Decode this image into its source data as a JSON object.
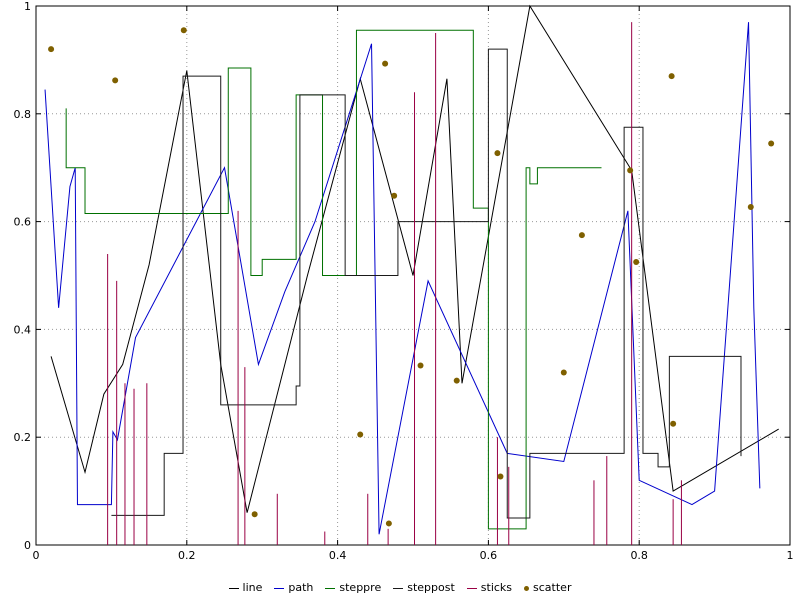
{
  "colors": {
    "background": "#ffffff",
    "axis": "#000000",
    "grid": "#999999",
    "text": "#000000"
  },
  "chart_data": {
    "type": "mixed",
    "title": "",
    "xlabel": "",
    "ylabel": "",
    "xlim": [
      0,
      1
    ],
    "ylim": [
      0,
      1
    ],
    "grid": true,
    "legend_position": "bottom-center",
    "xticks": {
      "values": [
        0,
        0.2,
        0.4,
        0.6,
        0.8,
        1
      ],
      "labels": [
        "0",
        "0.2",
        "0.4",
        "0.6",
        "0.8",
        "1"
      ]
    },
    "yticks": {
      "values": [
        0,
        0.2,
        0.4,
        0.6,
        0.8,
        1
      ],
      "labels": [
        "0",
        "0.2",
        "0.4",
        "0.6",
        "0.8",
        "1"
      ]
    },
    "series": [
      {
        "name": "line",
        "type": "line",
        "color": "#000000",
        "points": [
          [
            0.02,
            0.35
          ],
          [
            0.065,
            0.135
          ],
          [
            0.09,
            0.28
          ],
          [
            0.115,
            0.335
          ],
          [
            0.15,
            0.52
          ],
          [
            0.2,
            0.88
          ],
          [
            0.245,
            0.335
          ],
          [
            0.28,
            0.06
          ],
          [
            0.36,
            0.5
          ],
          [
            0.43,
            0.865
          ],
          [
            0.5,
            0.5
          ],
          [
            0.545,
            0.865
          ],
          [
            0.565,
            0.3
          ],
          [
            0.655,
            1.0
          ],
          [
            0.79,
            0.695
          ],
          [
            0.845,
            0.1
          ],
          [
            0.985,
            0.215
          ]
        ]
      },
      {
        "name": "path",
        "type": "path",
        "color": "#0000cc",
        "points": [
          [
            0.012,
            0.845
          ],
          [
            0.03,
            0.44
          ],
          [
            0.045,
            0.665
          ],
          [
            0.052,
            0.7
          ],
          [
            0.055,
            0.075
          ],
          [
            0.1,
            0.075
          ],
          [
            0.102,
            0.21
          ],
          [
            0.108,
            0.195
          ],
          [
            0.132,
            0.385
          ],
          [
            0.25,
            0.7
          ],
          [
            0.295,
            0.335
          ],
          [
            0.33,
            0.47
          ],
          [
            0.37,
            0.6
          ],
          [
            0.445,
            0.93
          ],
          [
            0.455,
            0.02
          ],
          [
            0.52,
            0.49
          ],
          [
            0.625,
            0.17
          ],
          [
            0.7,
            0.155
          ],
          [
            0.785,
            0.62
          ],
          [
            0.8,
            0.12
          ],
          [
            0.87,
            0.075
          ],
          [
            0.9,
            0.1
          ],
          [
            0.945,
            0.97
          ],
          [
            0.952,
            0.44
          ],
          [
            0.96,
            0.105
          ]
        ]
      },
      {
        "name": "steppre",
        "type": "steppre",
        "color": "#007000",
        "points": [
          [
            0.04,
            0.81
          ],
          [
            0.065,
            0.7
          ],
          [
            0.14,
            0.615
          ],
          [
            0.255,
            0.615
          ],
          [
            0.285,
            0.885
          ],
          [
            0.3,
            0.5
          ],
          [
            0.345,
            0.53
          ],
          [
            0.38,
            0.835
          ],
          [
            0.425,
            0.5
          ],
          [
            0.47,
            0.955
          ],
          [
            0.58,
            0.955
          ],
          [
            0.6,
            0.625
          ],
          [
            0.605,
            0.03
          ],
          [
            0.65,
            0.03
          ],
          [
            0.655,
            0.7
          ],
          [
            0.665,
            0.67
          ],
          [
            0.75,
            0.7
          ]
        ]
      },
      {
        "name": "steppost",
        "type": "steppost",
        "color": "#1a1a1a",
        "points": [
          [
            0.1,
            0.055
          ],
          [
            0.17,
            0.17
          ],
          [
            0.195,
            0.87
          ],
          [
            0.245,
            0.26
          ],
          [
            0.345,
            0.295
          ],
          [
            0.35,
            0.835
          ],
          [
            0.405,
            0.835
          ],
          [
            0.41,
            0.5
          ],
          [
            0.48,
            0.6
          ],
          [
            0.6,
            0.92
          ],
          [
            0.625,
            0.05
          ],
          [
            0.655,
            0.17
          ],
          [
            0.78,
            0.775
          ],
          [
            0.805,
            0.17
          ],
          [
            0.825,
            0.145
          ],
          [
            0.84,
            0.35
          ],
          [
            0.935,
            0.165
          ]
        ]
      },
      {
        "name": "sticks",
        "type": "sticks",
        "color": "#990044",
        "points": [
          [
            0.095,
            0.54
          ],
          [
            0.107,
            0.49
          ],
          [
            0.118,
            0.3
          ],
          [
            0.13,
            0.29
          ],
          [
            0.147,
            0.3
          ],
          [
            0.268,
            0.62
          ],
          [
            0.277,
            0.33
          ],
          [
            0.32,
            0.095
          ],
          [
            0.383,
            0.025
          ],
          [
            0.44,
            0.095
          ],
          [
            0.467,
            0.03
          ],
          [
            0.502,
            0.84
          ],
          [
            0.53,
            0.95
          ],
          [
            0.612,
            0.2
          ],
          [
            0.627,
            0.145
          ],
          [
            0.74,
            0.12
          ],
          [
            0.757,
            0.165
          ],
          [
            0.79,
            0.97
          ],
          [
            0.845,
            0.085
          ],
          [
            0.856,
            0.12
          ]
        ]
      },
      {
        "name": "scatter",
        "type": "scatter",
        "color": "#7f6000",
        "points": [
          [
            0.02,
            0.92
          ],
          [
            0.105,
            0.862
          ],
          [
            0.196,
            0.955
          ],
          [
            0.29,
            0.057
          ],
          [
            0.43,
            0.205
          ],
          [
            0.463,
            0.893
          ],
          [
            0.475,
            0.648
          ],
          [
            0.468,
            0.04
          ],
          [
            0.51,
            0.333
          ],
          [
            0.558,
            0.305
          ],
          [
            0.612,
            0.727
          ],
          [
            0.616,
            0.127
          ],
          [
            0.7,
            0.32
          ],
          [
            0.724,
            0.575
          ],
          [
            0.788,
            0.695
          ],
          [
            0.796,
            0.525
          ],
          [
            0.843,
            0.87
          ],
          [
            0.845,
            0.225
          ],
          [
            0.948,
            0.627
          ],
          [
            0.975,
            0.745
          ]
        ]
      }
    ]
  }
}
